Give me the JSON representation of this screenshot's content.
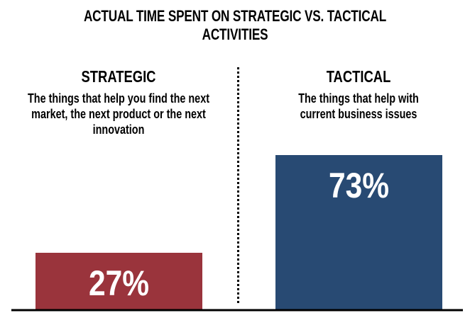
{
  "chart_data": {
    "type": "bar",
    "title": "ACTUAL TIME SPENT ON STRATEGIC VS. TACTICAL ACTIVITIES",
    "categories": [
      "STRATEGIC",
      "TACTICAL"
    ],
    "descriptions": [
      "The things that help you find the next market, the next product or the next innovation",
      "The things that help with current business issues"
    ],
    "values": [
      27,
      73
    ],
    "labels": [
      "27%",
      "73%"
    ],
    "unit": "%",
    "colors": [
      "#9a343c",
      "#284a73"
    ],
    "grid": false
  }
}
